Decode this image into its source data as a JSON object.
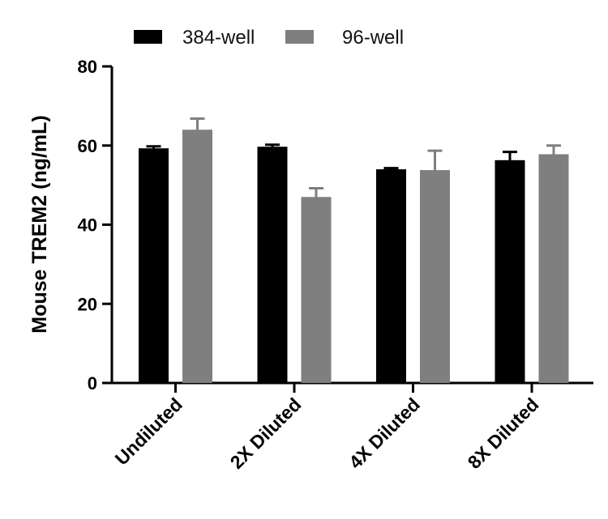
{
  "chart_data": {
    "type": "bar",
    "title": "",
    "xlabel": "",
    "ylabel": "Mouse TREM2 (ng/mL)",
    "ylim": [
      0,
      80
    ],
    "yticks": [
      0,
      20,
      40,
      60,
      80
    ],
    "grid": false,
    "legend_position": "top",
    "categories": [
      "Undiluted",
      "2X Diluted",
      "4X Diluted",
      "8X Diluted"
    ],
    "series": [
      {
        "name": "384-well",
        "color": "#000000",
        "values": [
          59.3,
          59.7,
          54.0,
          56.3
        ],
        "errors": [
          0.5,
          0.5,
          0.3,
          2.1
        ]
      },
      {
        "name": "96-well",
        "color": "#7f7f7f",
        "values": [
          64.0,
          47.0,
          53.8,
          57.8
        ],
        "errors": [
          2.8,
          2.2,
          4.9,
          2.2
        ]
      }
    ]
  }
}
